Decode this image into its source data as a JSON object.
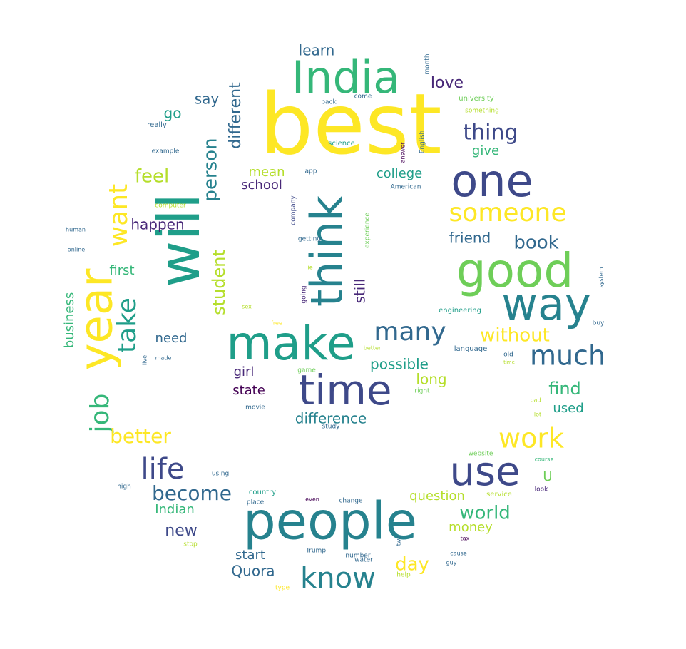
{
  "palette": {
    "yellow": "#fde725",
    "lime": "#b5de2b",
    "lightgreen": "#6ece58",
    "green": "#35b779",
    "teal": "#1f9e89",
    "blueteal": "#26828e",
    "steel": "#31688e",
    "indigo": "#3e4989",
    "purple": "#482878",
    "dark": "#440154"
  },
  "words": [
    {
      "text": "best",
      "color": "yellow"
    },
    {
      "text": "India",
      "color": "green"
    },
    {
      "text": "will",
      "color": "teal"
    },
    {
      "text": "think",
      "color": "blueteal"
    },
    {
      "text": "one",
      "color": "indigo"
    },
    {
      "text": "good",
      "color": "lightgreen"
    },
    {
      "text": "way",
      "color": "blueteal"
    },
    {
      "text": "people",
      "color": "blueteal"
    },
    {
      "text": "time",
      "color": "indigo"
    },
    {
      "text": "make",
      "color": "teal"
    },
    {
      "text": "year",
      "color": "yellow"
    },
    {
      "text": "use",
      "color": "indigo"
    },
    {
      "text": "someone",
      "color": "yellow"
    },
    {
      "text": "work",
      "color": "yellow"
    },
    {
      "text": "much",
      "color": "steel"
    },
    {
      "text": "many",
      "color": "steel"
    },
    {
      "text": "know",
      "color": "blueteal"
    },
    {
      "text": "life",
      "color": "indigo"
    },
    {
      "text": "want",
      "color": "yellow"
    },
    {
      "text": "take",
      "color": "teal"
    },
    {
      "text": "job",
      "color": "green"
    },
    {
      "text": "thing",
      "color": "indigo"
    },
    {
      "text": "person",
      "color": "blueteal"
    },
    {
      "text": "student",
      "color": "lime"
    },
    {
      "text": "better",
      "color": "yellow"
    },
    {
      "text": "become",
      "color": "steel"
    },
    {
      "text": "without",
      "color": "yellow"
    },
    {
      "text": "book",
      "color": "steel"
    },
    {
      "text": "world",
      "color": "green"
    },
    {
      "text": "find",
      "color": "green"
    },
    {
      "text": "feel",
      "color": "lime"
    },
    {
      "text": "different",
      "color": "steel"
    },
    {
      "text": "learn",
      "color": "steel"
    },
    {
      "text": "love",
      "color": "purple"
    },
    {
      "text": "say",
      "color": "steel"
    },
    {
      "text": "go",
      "color": "teal"
    },
    {
      "text": "give",
      "color": "green"
    },
    {
      "text": "mean",
      "color": "lime"
    },
    {
      "text": "college",
      "color": "teal"
    },
    {
      "text": "school",
      "color": "purple"
    },
    {
      "text": "happen",
      "color": "purple"
    },
    {
      "text": "friend",
      "color": "steel"
    },
    {
      "text": "first",
      "color": "green"
    },
    {
      "text": "still",
      "color": "purple"
    },
    {
      "text": "business",
      "color": "green"
    },
    {
      "text": "need",
      "color": "steel"
    },
    {
      "text": "possible",
      "color": "teal"
    },
    {
      "text": "girl",
      "color": "purple"
    },
    {
      "text": "long",
      "color": "lime"
    },
    {
      "text": "state",
      "color": "dark"
    },
    {
      "text": "used",
      "color": "teal"
    },
    {
      "text": "difference",
      "color": "blueteal"
    },
    {
      "text": "U",
      "color": "lightgreen"
    },
    {
      "text": "question",
      "color": "lime"
    },
    {
      "text": "Indian",
      "color": "green"
    },
    {
      "text": "new",
      "color": "indigo"
    },
    {
      "text": "money",
      "color": "lime"
    },
    {
      "text": "start",
      "color": "steel"
    },
    {
      "text": "day",
      "color": "yellow"
    },
    {
      "text": "Quora",
      "color": "steel"
    },
    {
      "text": "month",
      "color": "steel"
    },
    {
      "text": "back",
      "color": "steel"
    },
    {
      "text": "come",
      "color": "steel"
    },
    {
      "text": "university",
      "color": "lightgreen"
    },
    {
      "text": "something",
      "color": "lime"
    },
    {
      "text": "really",
      "color": "steel"
    },
    {
      "text": "example",
      "color": "steel"
    },
    {
      "text": "science",
      "color": "teal"
    },
    {
      "text": "English",
      "color": "steel"
    },
    {
      "text": "answer",
      "color": "dark"
    },
    {
      "text": "number",
      "color": "steel"
    },
    {
      "text": "American",
      "color": "steel"
    },
    {
      "text": "computer",
      "color": "lime"
    },
    {
      "text": "company",
      "color": "indigo"
    },
    {
      "text": "getting",
      "color": "steel"
    },
    {
      "text": "experience",
      "color": "lightgreen"
    },
    {
      "text": "human",
      "color": "steel"
    },
    {
      "text": "online",
      "color": "steel"
    },
    {
      "text": "going",
      "color": "purple"
    },
    {
      "text": "system",
      "color": "steel"
    },
    {
      "text": "engineering",
      "color": "teal"
    },
    {
      "text": "free",
      "color": "yellow"
    },
    {
      "text": "buy",
      "color": "steel"
    },
    {
      "text": "language",
      "color": "steel"
    },
    {
      "text": "old",
      "color": "steel"
    },
    {
      "text": "made",
      "color": "steel"
    },
    {
      "text": "live",
      "color": "steel"
    },
    {
      "text": "game",
      "color": "lightgreen"
    },
    {
      "text": "right",
      "color": "lightgreen"
    },
    {
      "text": "movie",
      "color": "steel"
    },
    {
      "text": "study",
      "color": "steel"
    },
    {
      "text": "website",
      "color": "lightgreen"
    },
    {
      "text": "course",
      "color": "green"
    },
    {
      "text": "using",
      "color": "steel"
    },
    {
      "text": "country",
      "color": "teal"
    },
    {
      "text": "place",
      "color": "steel"
    },
    {
      "text": "even",
      "color": "dark"
    },
    {
      "text": "change",
      "color": "steel"
    },
    {
      "text": "service",
      "color": "lime"
    },
    {
      "text": "look",
      "color": "purple"
    },
    {
      "text": "high",
      "color": "steel"
    },
    {
      "text": "stop",
      "color": "lime"
    },
    {
      "text": "Trump",
      "color": "steel"
    },
    {
      "text": "water",
      "color": "steel"
    },
    {
      "text": "help",
      "color": "lime"
    },
    {
      "text": "cause",
      "color": "steel"
    },
    {
      "text": "guy",
      "color": "steel"
    },
    {
      "text": "type",
      "color": "yellow"
    },
    {
      "text": "two",
      "color": "steel"
    },
    {
      "text": "bad",
      "color": "lime"
    },
    {
      "text": "lot",
      "color": "lime"
    },
    {
      "text": "app",
      "color": "steel"
    },
    {
      "text": "better",
      "color": "lime"
    },
    {
      "text": "time",
      "color": "lime"
    },
    {
      "text": "tax",
      "color": "dark"
    },
    {
      "text": "lie",
      "color": "lime"
    },
    {
      "text": "sex",
      "color": "lime"
    }
  ]
}
